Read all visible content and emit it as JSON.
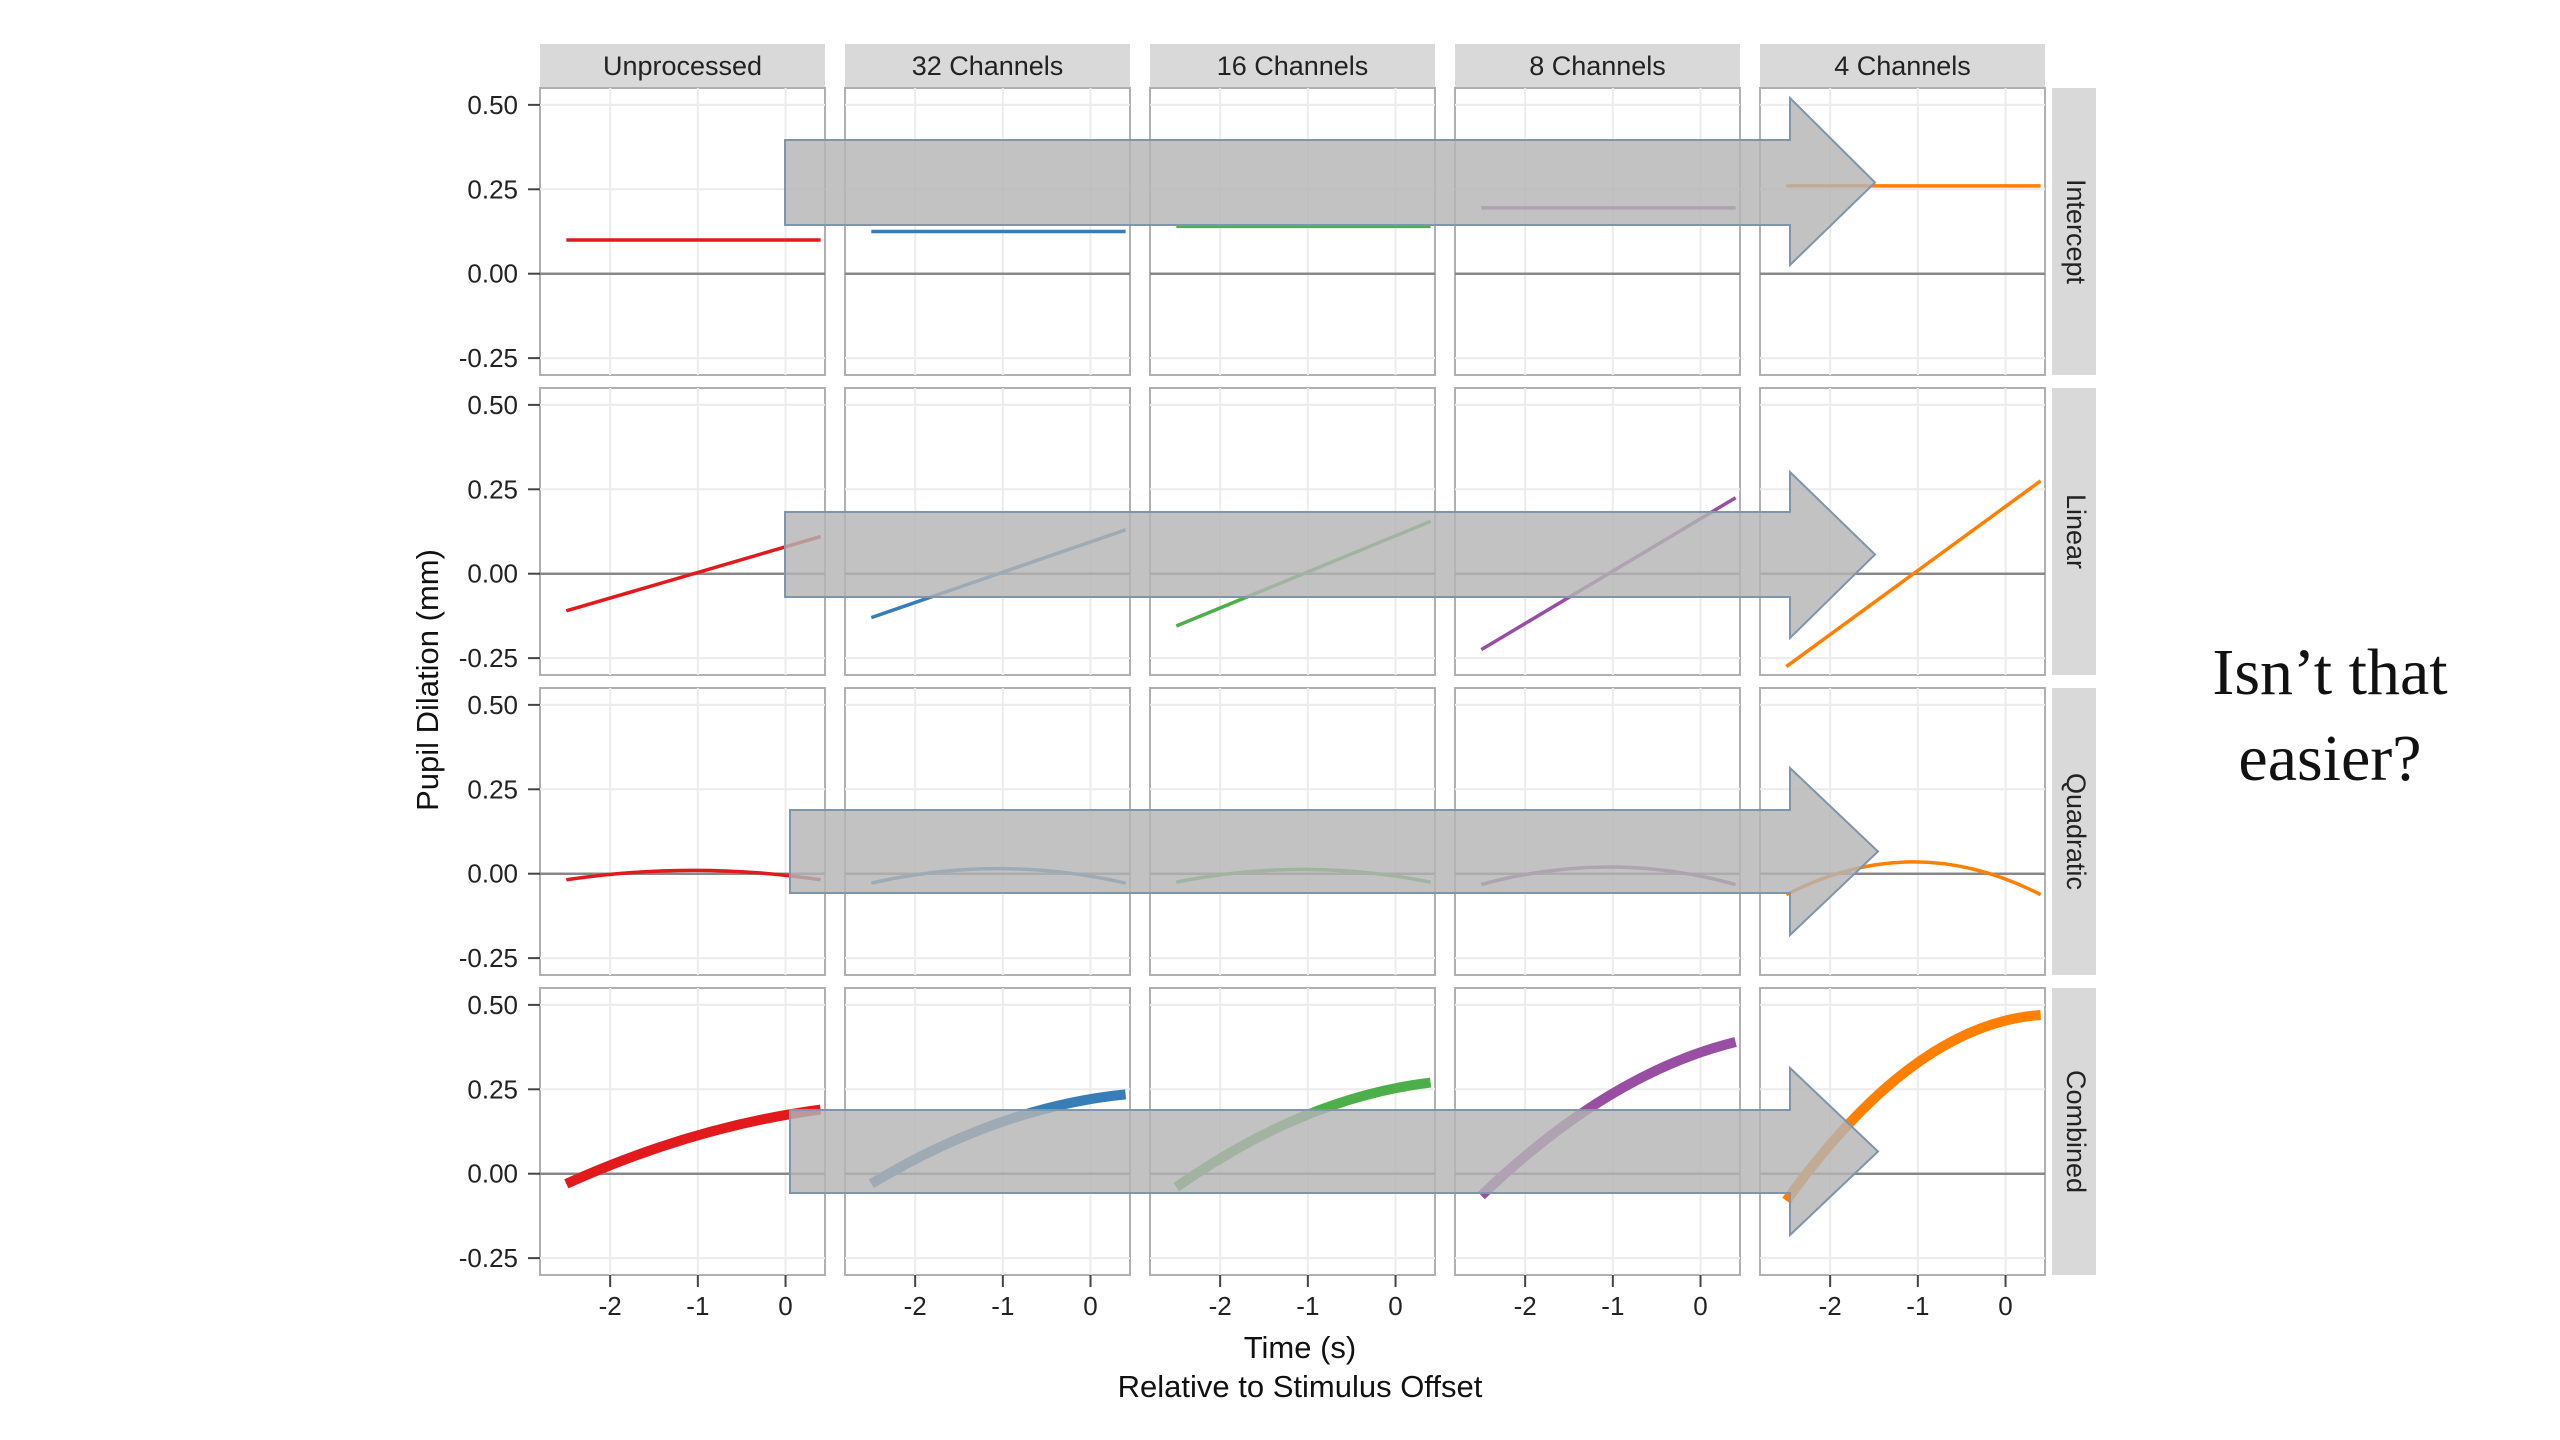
{
  "side_note": {
    "line1": "Isn’t that",
    "line2": "easier?"
  },
  "chart_data": {
    "type": "line",
    "layout": "facet-grid",
    "xlabel": "Time (s)",
    "xlabel_sub": "Relative to Stimulus Offset",
    "ylabel": "Pupil Dilation (mm)",
    "columns": [
      "Unprocessed",
      "32 Channels",
      "16 Channels",
      "8 Channels",
      "4 Channels"
    ],
    "rows": [
      "Intercept",
      "Linear",
      "Quadratic",
      "Combined"
    ],
    "x_ticks": [
      -2,
      -1,
      0
    ],
    "x_tick_labels": [
      "-2",
      "-1",
      "0"
    ],
    "y_ticks": [
      -0.25,
      0,
      0.25,
      0.5
    ],
    "y_tick_labels": [
      "-0.25",
      "0.00",
      "0.25",
      "0.50"
    ],
    "xlim": [
      -2.8,
      0.45
    ],
    "ylim": [
      -0.3,
      0.55
    ],
    "x_range": [
      -2.5,
      0.4
    ],
    "grid": true,
    "legend": "none",
    "colors": {
      "Unprocessed": "#e31a1c",
      "32 Channels": "#377eb8",
      "16 Channels": "#4daf4a",
      "8 Channels": "#984ea3",
      "4 Channels": "#ff7f00"
    },
    "background": {
      "strip": "#d9d9d9",
      "grid": "#ececec",
      "zero_line": "#888888",
      "arrow_fill": "#b5b5b5",
      "arrow_stroke": "#7f95ab"
    },
    "curves": {
      "Intercept": [
        {
          "column": "Unprocessed",
          "y": [
            0.1,
            0.1
          ]
        },
        {
          "column": "32 Channels",
          "y": [
            0.125,
            0.125
          ]
        },
        {
          "column": "16 Channels",
          "y": [
            0.14,
            0.14
          ]
        },
        {
          "column": "8 Channels",
          "y": [
            0.195,
            0.195
          ]
        },
        {
          "column": "4 Channels",
          "y": [
            0.26,
            0.26
          ]
        }
      ],
      "Linear": [
        {
          "column": "Unprocessed",
          "y": [
            -0.11,
            0.11
          ]
        },
        {
          "column": "32 Channels",
          "y": [
            -0.13,
            0.13
          ]
        },
        {
          "column": "16 Channels",
          "y": [
            -0.155,
            0.155
          ]
        },
        {
          "column": "8 Channels",
          "y": [
            -0.225,
            0.225
          ]
        },
        {
          "column": "4 Channels",
          "y": [
            -0.275,
            0.275
          ]
        }
      ],
      "Quadratic": [
        {
          "column": "Unprocessed",
          "y": [
            -0.018,
            0.01,
            -0.018
          ]
        },
        {
          "column": "32 Channels",
          "y": [
            -0.028,
            0.015,
            -0.028
          ]
        },
        {
          "column": "16 Channels",
          "y": [
            -0.025,
            0.013,
            -0.025
          ]
        },
        {
          "column": "8 Channels",
          "y": [
            -0.032,
            0.02,
            -0.032
          ]
        },
        {
          "column": "4 Channels",
          "y": [
            -0.062,
            0.035,
            -0.062
          ]
        }
      ],
      "Combined": [
        {
          "column": "Unprocessed",
          "y": [
            -0.03,
            0.11,
            0.19
          ]
        },
        {
          "column": "32 Channels",
          "y": [
            -0.03,
            0.15,
            0.235
          ]
        },
        {
          "column": "16 Channels",
          "y": [
            -0.04,
            0.17,
            0.27
          ]
        },
        {
          "column": "8 Channels",
          "y": [
            -0.065,
            0.23,
            0.39
          ]
        },
        {
          "column": "4 Channels",
          "y": [
            -0.08,
            0.32,
            0.47
          ]
        }
      ]
    }
  }
}
